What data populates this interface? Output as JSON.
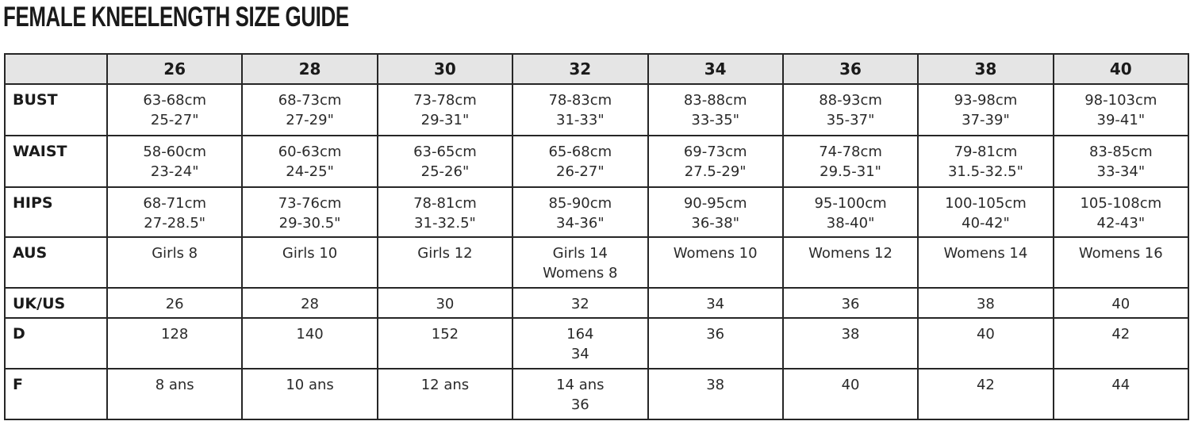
{
  "title": "FEMALE KNEELENGTH SIZE GUIDE",
  "table": {
    "columns": [
      "",
      "26",
      "28",
      "30",
      "32",
      "34",
      "36",
      "38",
      "40"
    ],
    "rows": [
      {
        "label": "BUST",
        "cells": [
          [
            "63-68cm",
            "25-27\""
          ],
          [
            "68-73cm",
            "27-29\""
          ],
          [
            "73-78cm",
            "29-31\""
          ],
          [
            "78-83cm",
            "31-33\""
          ],
          [
            "83-88cm",
            "33-35\""
          ],
          [
            "88-93cm",
            "35-37\""
          ],
          [
            "93-98cm",
            "37-39\""
          ],
          [
            "98-103cm",
            "39-41\""
          ]
        ]
      },
      {
        "label": "WAIST",
        "cells": [
          [
            "58-60cm",
            "23-24\""
          ],
          [
            "60-63cm",
            "24-25\""
          ],
          [
            "63-65cm",
            "25-26\""
          ],
          [
            "65-68cm",
            "26-27\""
          ],
          [
            "69-73cm",
            "27.5-29\""
          ],
          [
            "74-78cm",
            "29.5-31\""
          ],
          [
            "79-81cm",
            "31.5-32.5\""
          ],
          [
            "83-85cm",
            "33-34\""
          ]
        ]
      },
      {
        "label": "HIPS",
        "cells": [
          [
            "68-71cm",
            "27-28.5\""
          ],
          [
            "73-76cm",
            "29-30.5\""
          ],
          [
            "78-81cm",
            "31-32.5\""
          ],
          [
            "85-90cm",
            "34-36\""
          ],
          [
            "90-95cm",
            "36-38\""
          ],
          [
            "95-100cm",
            "38-40\""
          ],
          [
            "100-105cm",
            "40-42\""
          ],
          [
            "105-108cm",
            "42-43\""
          ]
        ]
      },
      {
        "label": "AUS",
        "cells": [
          [
            "Girls 8"
          ],
          [
            "Girls 10"
          ],
          [
            "Girls 12"
          ],
          [
            "Girls 14",
            "Womens 8"
          ],
          [
            "Womens 10"
          ],
          [
            "Womens 12"
          ],
          [
            "Womens 14"
          ],
          [
            "Womens 16"
          ]
        ]
      },
      {
        "label": "UK/US",
        "cells": [
          [
            "26"
          ],
          [
            "28"
          ],
          [
            "30"
          ],
          [
            "32"
          ],
          [
            "34"
          ],
          [
            "36"
          ],
          [
            "38"
          ],
          [
            "40"
          ]
        ]
      },
      {
        "label": "D",
        "cells": [
          [
            "128"
          ],
          [
            "140"
          ],
          [
            "152"
          ],
          [
            "164",
            "34"
          ],
          [
            "36"
          ],
          [
            "38"
          ],
          [
            "40"
          ],
          [
            "42"
          ]
        ]
      },
      {
        "label": "F",
        "cells": [
          [
            "8 ans"
          ],
          [
            "10 ans"
          ],
          [
            "12 ans"
          ],
          [
            "14 ans",
            "36"
          ],
          [
            "38"
          ],
          [
            "40"
          ],
          [
            "42"
          ],
          [
            "44"
          ]
        ]
      }
    ]
  }
}
